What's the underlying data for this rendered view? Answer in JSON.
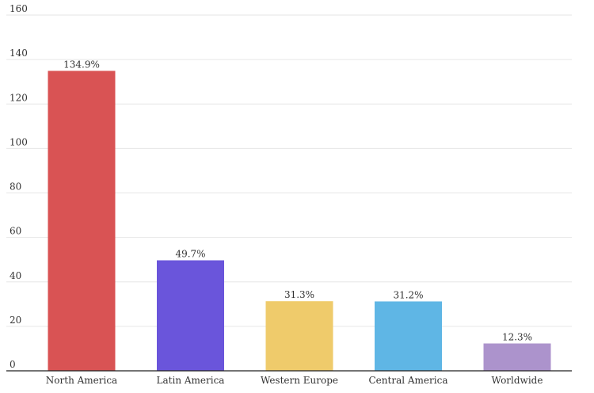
{
  "chart_data": {
    "type": "bar",
    "categories": [
      "North America",
      "Latin America",
      "Western Europe",
      "Central America",
      "Worldwide"
    ],
    "values": [
      134.9,
      49.7,
      31.3,
      31.2,
      12.3
    ],
    "data_labels": [
      "134.9%",
      "49.7%",
      "31.3%",
      "31.2%",
      "12.3%"
    ],
    "colors": [
      "#d95354",
      "#6a55db",
      "#efcb6b",
      "#5fb6e5",
      "#ac93cc"
    ],
    "ylim": [
      0,
      160
    ],
    "yticks": [
      0,
      20,
      40,
      60,
      80,
      100,
      120,
      140,
      160
    ],
    "title": "",
    "xlabel": "",
    "ylabel": "",
    "grid": true,
    "legend": "none"
  }
}
